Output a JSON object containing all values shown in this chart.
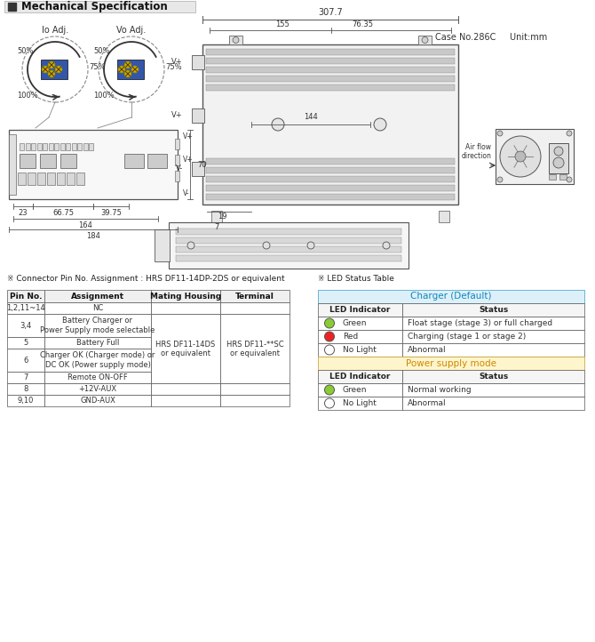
{
  "title": "Mechanical Specification",
  "case_info": "Case No.286C     Unit:mm",
  "bg_color": "#ffffff",
  "connector_title": "※ Connector Pin No. Assignment : HRS DF11-14DP-2DS or equivalent",
  "led_title": "※ LED Status Table",
  "pin_table": {
    "headers": [
      "Pin No.",
      "Assignment",
      "Mating Housing",
      "Terminal"
    ],
    "rows": [
      [
        "1,2,11~14",
        "NC",
        "",
        ""
      ],
      [
        "3,4",
        "Battery Charger or\nPower Supply mode selectable",
        "",
        ""
      ],
      [
        "5",
        "Battery Full",
        "HRS DF11-14DS\nor equivalent",
        "HRS DF11-**SC\nor equivalent"
      ],
      [
        "6",
        "Charger OK (Charger mode) or\nDC OK (Power supply mode)",
        "",
        ""
      ],
      [
        "7",
        "Remote ON-OFF",
        "",
        ""
      ],
      [
        "8",
        "+12V-AUX",
        "",
        ""
      ],
      [
        "9,10",
        "GND-AUX",
        "",
        ""
      ]
    ]
  },
  "led_table": {
    "charger_header": "Charger (Default)",
    "charger_rows": [
      {
        "indicator": "Green",
        "color": "#88cc33",
        "filled": true,
        "status": "Float stage (stage 3) or full charged"
      },
      {
        "indicator": "Red",
        "color": "#ee2222",
        "filled": true,
        "status": "Charging (stage 1 or stage 2)"
      },
      {
        "indicator": "No Light",
        "color": "#ffffff",
        "filled": false,
        "status": "Abnormal"
      }
    ],
    "power_header": "Power supply mode",
    "power_rows": [
      {
        "indicator": "Green",
        "color": "#88cc33",
        "filled": true,
        "status": "Normal working"
      },
      {
        "indicator": "No Light",
        "color": "#ffffff",
        "filled": false,
        "status": "Abnormal"
      }
    ]
  }
}
